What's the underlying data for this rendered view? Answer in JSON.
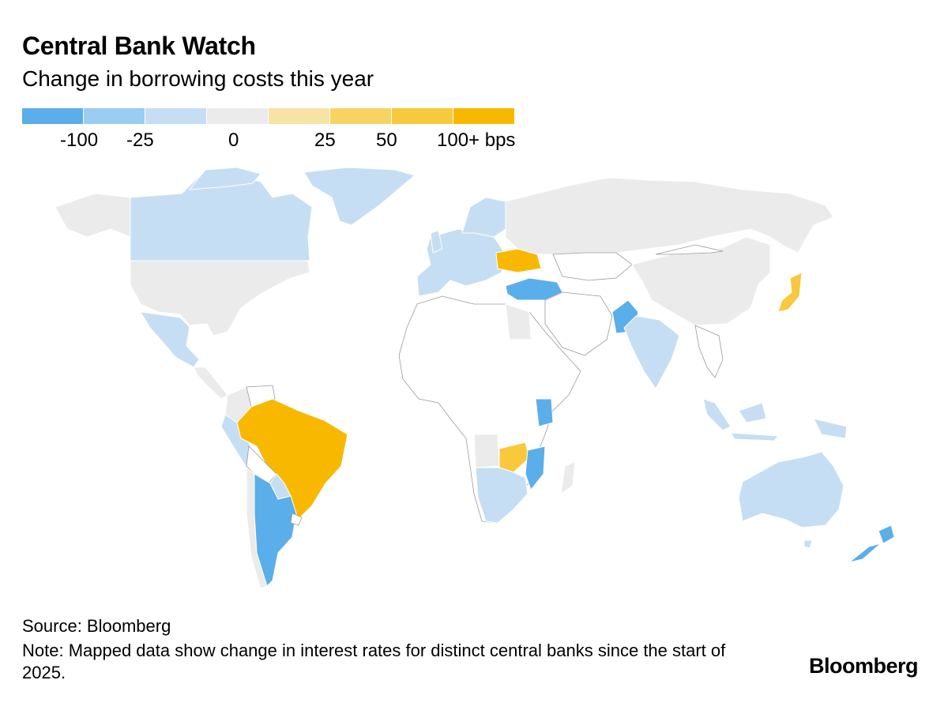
{
  "header": {
    "title": "Central Bank Watch",
    "subtitle": "Change in borrowing costs this year"
  },
  "legend": {
    "colors": [
      "#5aaee9",
      "#99cdf2",
      "#c6def3",
      "#ebebeb",
      "#f7e3a6",
      "#f7d462",
      "#f9c93d",
      "#f9b800"
    ],
    "labels": [
      "-100",
      "-25",
      "0",
      "25",
      "50",
      "100+ bps"
    ]
  },
  "map": {
    "regions": [
      {
        "name": "United States",
        "category": "0"
      },
      {
        "name": "Canada",
        "category": "-25"
      },
      {
        "name": "Mexico",
        "category": "-25"
      },
      {
        "name": "Brazil",
        "category": "100+"
      },
      {
        "name": "Argentina",
        "category": "-100"
      },
      {
        "name": "Chile",
        "category": "0"
      },
      {
        "name": "Peru",
        "category": "-25"
      },
      {
        "name": "Colombia",
        "category": "0"
      },
      {
        "name": "Paraguay",
        "category": "-25"
      },
      {
        "name": "Europe (euro area)",
        "category": "-25"
      },
      {
        "name": "Ukraine",
        "category": "100+"
      },
      {
        "name": "Turkey",
        "category": "-100"
      },
      {
        "name": "Russia",
        "category": "0"
      },
      {
        "name": "China",
        "category": "0"
      },
      {
        "name": "India",
        "category": "-25"
      },
      {
        "name": "Pakistan",
        "category": "-100"
      },
      {
        "name": "Japan",
        "category": "50"
      },
      {
        "name": "Indonesia",
        "category": "-25"
      },
      {
        "name": "Australia",
        "category": "-25"
      },
      {
        "name": "New Zealand",
        "category": "-100"
      },
      {
        "name": "Kenya",
        "category": "-100"
      },
      {
        "name": "Zambia",
        "category": "50"
      },
      {
        "name": "Mozambique",
        "category": "-100"
      },
      {
        "name": "South Africa",
        "category": "-25"
      },
      {
        "name": "Madagascar",
        "category": "0"
      }
    ]
  },
  "footer": {
    "source": "Source: Bloomberg",
    "note": "Note: Mapped data show change in interest rates for distinct central banks since the start of 2025.",
    "brand": "Bloomberg"
  }
}
